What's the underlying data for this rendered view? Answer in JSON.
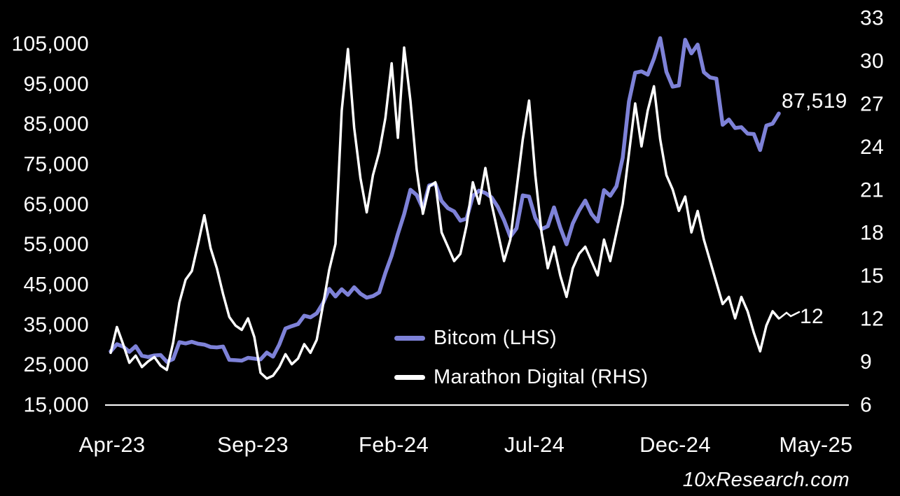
{
  "branding": {
    "watermark": "10xResearch.com"
  },
  "chart_data": {
    "type": "line",
    "title": "",
    "background": "#000000",
    "grid": false,
    "legend_position": "inside-bottom-center",
    "x_axis": {
      "tick_labels": [
        "Apr-23",
        "Sep-23",
        "Feb-24",
        "Jul-24",
        "Dec-24",
        "May-25"
      ]
    },
    "left_axis": {
      "min": 15000,
      "max": 105000,
      "tick_values": [
        105000,
        95000,
        85000,
        75000,
        65000,
        55000,
        45000,
        35000,
        25000,
        15000
      ],
      "tick_labels": [
        "105,000",
        "95,000",
        "85,000",
        "75,000",
        "65,000",
        "55,000",
        "45,000",
        "35,000",
        "25,000",
        "15,000"
      ]
    },
    "right_axis": {
      "min": 6,
      "max": 33,
      "tick_values": [
        33,
        30,
        27,
        24,
        21,
        18,
        15,
        12,
        9,
        6
      ],
      "tick_labels": [
        "33",
        "30",
        "27",
        "24",
        "21",
        "18",
        "15",
        "12",
        "9",
        "6"
      ]
    },
    "series": [
      {
        "name": "Bitcom (LHS)",
        "axis": "left",
        "color": "#7e82d8",
        "line_width": 5.5,
        "values": [
          28200,
          30000,
          29400,
          28100,
          29500,
          27100,
          26800,
          27200,
          27300,
          25600,
          26300,
          30500,
          30200,
          30600,
          30100,
          29900,
          29300,
          29200,
          29400,
          26100,
          26000,
          25900,
          26600,
          26400,
          26200,
          27900,
          26900,
          29900,
          33900,
          34500,
          35000,
          37100,
          36700,
          37700,
          40200,
          43800,
          41900,
          43700,
          42300,
          44200,
          42600,
          41600,
          42000,
          42900,
          47800,
          52100,
          57500,
          62400,
          68500,
          67200,
          63800,
          69600,
          70000,
          65700,
          63900,
          63100,
          60800,
          61300,
          66900,
          68300,
          67700,
          66600,
          64200,
          60900,
          56800,
          58900,
          67100,
          66800,
          61500,
          58700,
          59400,
          64100,
          59100,
          54900,
          60100,
          63300,
          65800,
          62500,
          60600,
          68400,
          67000,
          69400,
          76500,
          90500,
          97700,
          98000,
          97200,
          101200,
          106300,
          97900,
          94200,
          94500,
          105900,
          102500,
          104700,
          97800,
          96500,
          96200,
          84700,
          86000,
          83900,
          84100,
          82500,
          82400,
          78400,
          84500,
          85000,
          87519
        ]
      },
      {
        "name": "Marathon Digital (RHS)",
        "axis": "right",
        "color": "#ffffff",
        "line_width": 3.5,
        "values": [
          9.6,
          11.4,
          10.2,
          8.9,
          9.4,
          8.6,
          9.0,
          9.3,
          8.7,
          8.4,
          10.3,
          13.1,
          14.7,
          15.3,
          17.2,
          19.2,
          16.9,
          15.5,
          13.7,
          12.1,
          11.5,
          11.2,
          12.0,
          10.7,
          8.2,
          7.8,
          8.0,
          8.6,
          9.5,
          8.8,
          9.2,
          10.2,
          9.6,
          10.5,
          12.9,
          15.4,
          17.2,
          26.5,
          30.8,
          25.3,
          21.8,
          19.4,
          22.0,
          23.6,
          26.0,
          29.8,
          24.6,
          30.9,
          27.2,
          22.4,
          19.3,
          21.2,
          21.5,
          18.0,
          17.0,
          16.0,
          16.5,
          18.5,
          21.5,
          20.0,
          22.5,
          20.0,
          18.0,
          16.0,
          17.5,
          21.0,
          24.5,
          27.2,
          22.0,
          18.0,
          15.5,
          17.0,
          15.0,
          13.5,
          15.5,
          16.5,
          17.0,
          16.0,
          15.0,
          17.5,
          16.0,
          18.0,
          20.0,
          23.5,
          27.0,
          24.0,
          26.5,
          28.2,
          24.5,
          22.0,
          21.0,
          19.5,
          20.5,
          18.0,
          19.5,
          17.5,
          16.0,
          14.5,
          13.0,
          13.5,
          12.0,
          13.5,
          12.5,
          11.0,
          9.7,
          11.5,
          12.5,
          12.0
        ]
      }
    ],
    "annotations": [
      {
        "text": "87,519",
        "series": "Bitcom (LHS)",
        "color": "#ffffff"
      },
      {
        "text": "12",
        "series": "Marathon Digital (RHS)",
        "color": "#ffffff"
      }
    ]
  }
}
